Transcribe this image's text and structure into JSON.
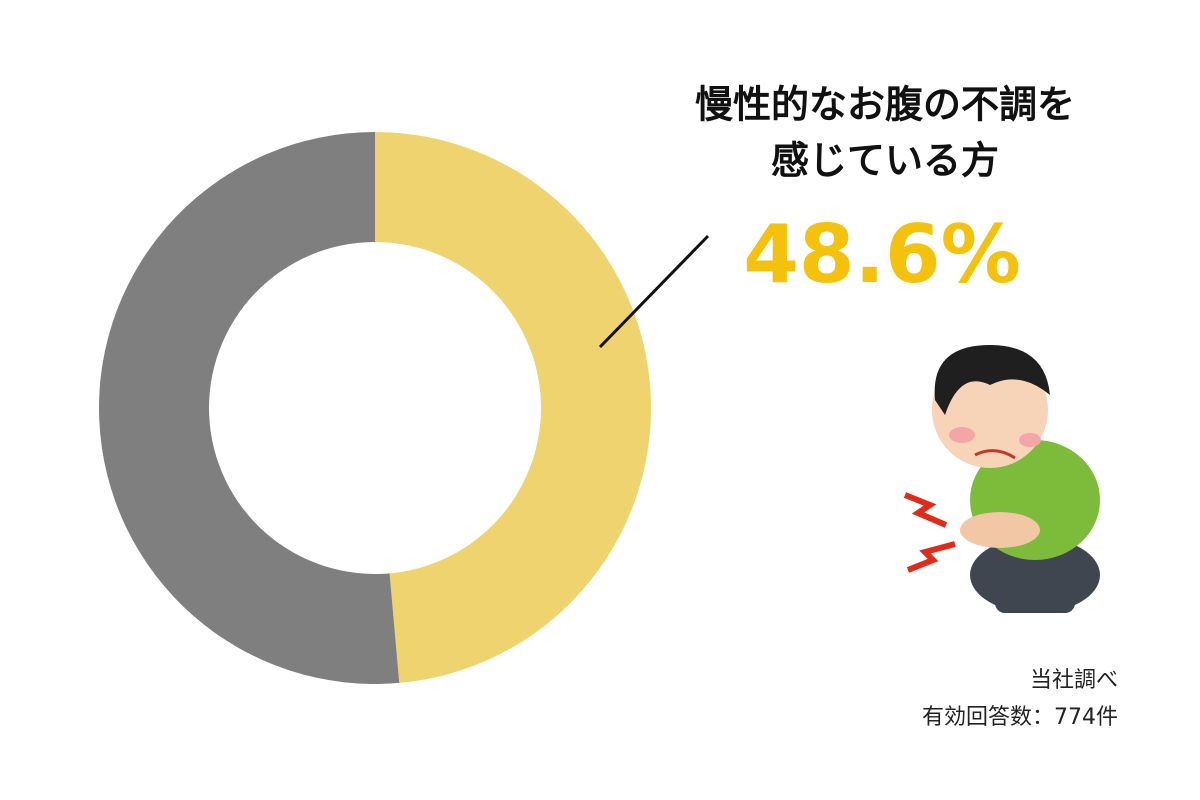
{
  "chart_data": {
    "type": "donut",
    "title_lines": [
      "慢性的なお腹の不調を",
      "感じている方"
    ],
    "values": [
      48.6,
      51.4
    ],
    "value_labels": [
      "48.6%",
      null
    ],
    "colors": [
      "#efd36e",
      "#7f7f7f"
    ],
    "notes": [
      "当社調べ",
      "有効回答数：774件"
    ]
  }
}
